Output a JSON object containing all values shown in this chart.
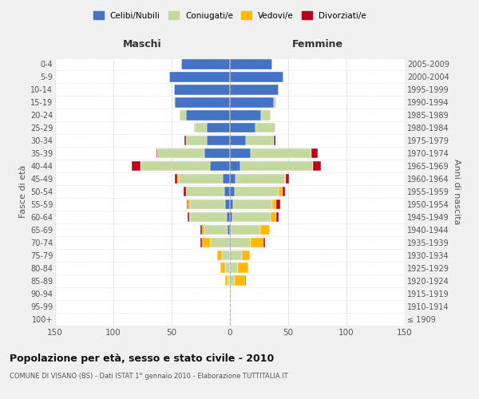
{
  "age_groups": [
    "100+",
    "95-99",
    "90-94",
    "85-89",
    "80-84",
    "75-79",
    "70-74",
    "65-69",
    "60-64",
    "55-59",
    "50-54",
    "45-49",
    "40-44",
    "35-39",
    "30-34",
    "25-29",
    "20-24",
    "15-19",
    "10-14",
    "5-9",
    "0-4"
  ],
  "birth_years": [
    "≤ 1909",
    "1910-1914",
    "1915-1919",
    "1920-1924",
    "1925-1929",
    "1930-1934",
    "1935-1939",
    "1940-1944",
    "1945-1949",
    "1950-1954",
    "1955-1959",
    "1960-1964",
    "1965-1969",
    "1970-1974",
    "1975-1979",
    "1980-1984",
    "1985-1989",
    "1990-1994",
    "1995-1999",
    "2000-2004",
    "2005-2009"
  ],
  "males": {
    "celibi": [
      0,
      0,
      0,
      0,
      0,
      0,
      1,
      2,
      3,
      4,
      5,
      6,
      17,
      22,
      20,
      20,
      38,
      47,
      48,
      52,
      42
    ],
    "coniugati": [
      0,
      0,
      0,
      2,
      4,
      7,
      16,
      20,
      31,
      30,
      33,
      38,
      60,
      40,
      18,
      10,
      5,
      1,
      0,
      0,
      0
    ],
    "vedovi": [
      0,
      0,
      0,
      2,
      4,
      4,
      7,
      2,
      1,
      2,
      0,
      1,
      0,
      0,
      0,
      1,
      0,
      0,
      0,
      0,
      0
    ],
    "divorziati": [
      0,
      0,
      0,
      0,
      0,
      0,
      1,
      1,
      1,
      1,
      2,
      2,
      7,
      1,
      1,
      0,
      0,
      0,
      0,
      0,
      0
    ]
  },
  "females": {
    "nubili": [
      0,
      0,
      0,
      0,
      0,
      0,
      1,
      1,
      2,
      3,
      4,
      5,
      9,
      18,
      14,
      22,
      27,
      38,
      42,
      46,
      36
    ],
    "coniugate": [
      0,
      0,
      0,
      4,
      7,
      10,
      17,
      25,
      33,
      33,
      38,
      42,
      62,
      52,
      24,
      17,
      8,
      2,
      0,
      0,
      0
    ],
    "vedove": [
      0,
      0,
      1,
      9,
      9,
      7,
      11,
      8,
      5,
      4,
      3,
      1,
      0,
      0,
      0,
      0,
      0,
      0,
      0,
      0,
      0
    ],
    "divorziate": [
      0,
      0,
      0,
      1,
      0,
      0,
      1,
      0,
      2,
      3,
      2,
      3,
      7,
      5,
      1,
      0,
      0,
      0,
      0,
      0,
      0
    ]
  },
  "colors": {
    "celibi_nubili": "#4472C4",
    "coniugati": "#C5D8A0",
    "vedovi": "#FFB900",
    "divorziati": "#C0001A"
  },
  "title": "Popolazione per età, sesso e stato civile - 2010",
  "subtitle": "COMUNE DI VISANO (BS) - Dati ISTAT 1° gennaio 2010 - Elaborazione TUTTITALIA.IT",
  "xlim": 150,
  "xlabel_maschi": "Maschi",
  "xlabel_femmine": "Femmine",
  "ylabel_left": "Fasce di età",
  "ylabel_right": "Anni di nascita",
  "background_color": "#f0f0f0",
  "plot_bg": "#ffffff"
}
